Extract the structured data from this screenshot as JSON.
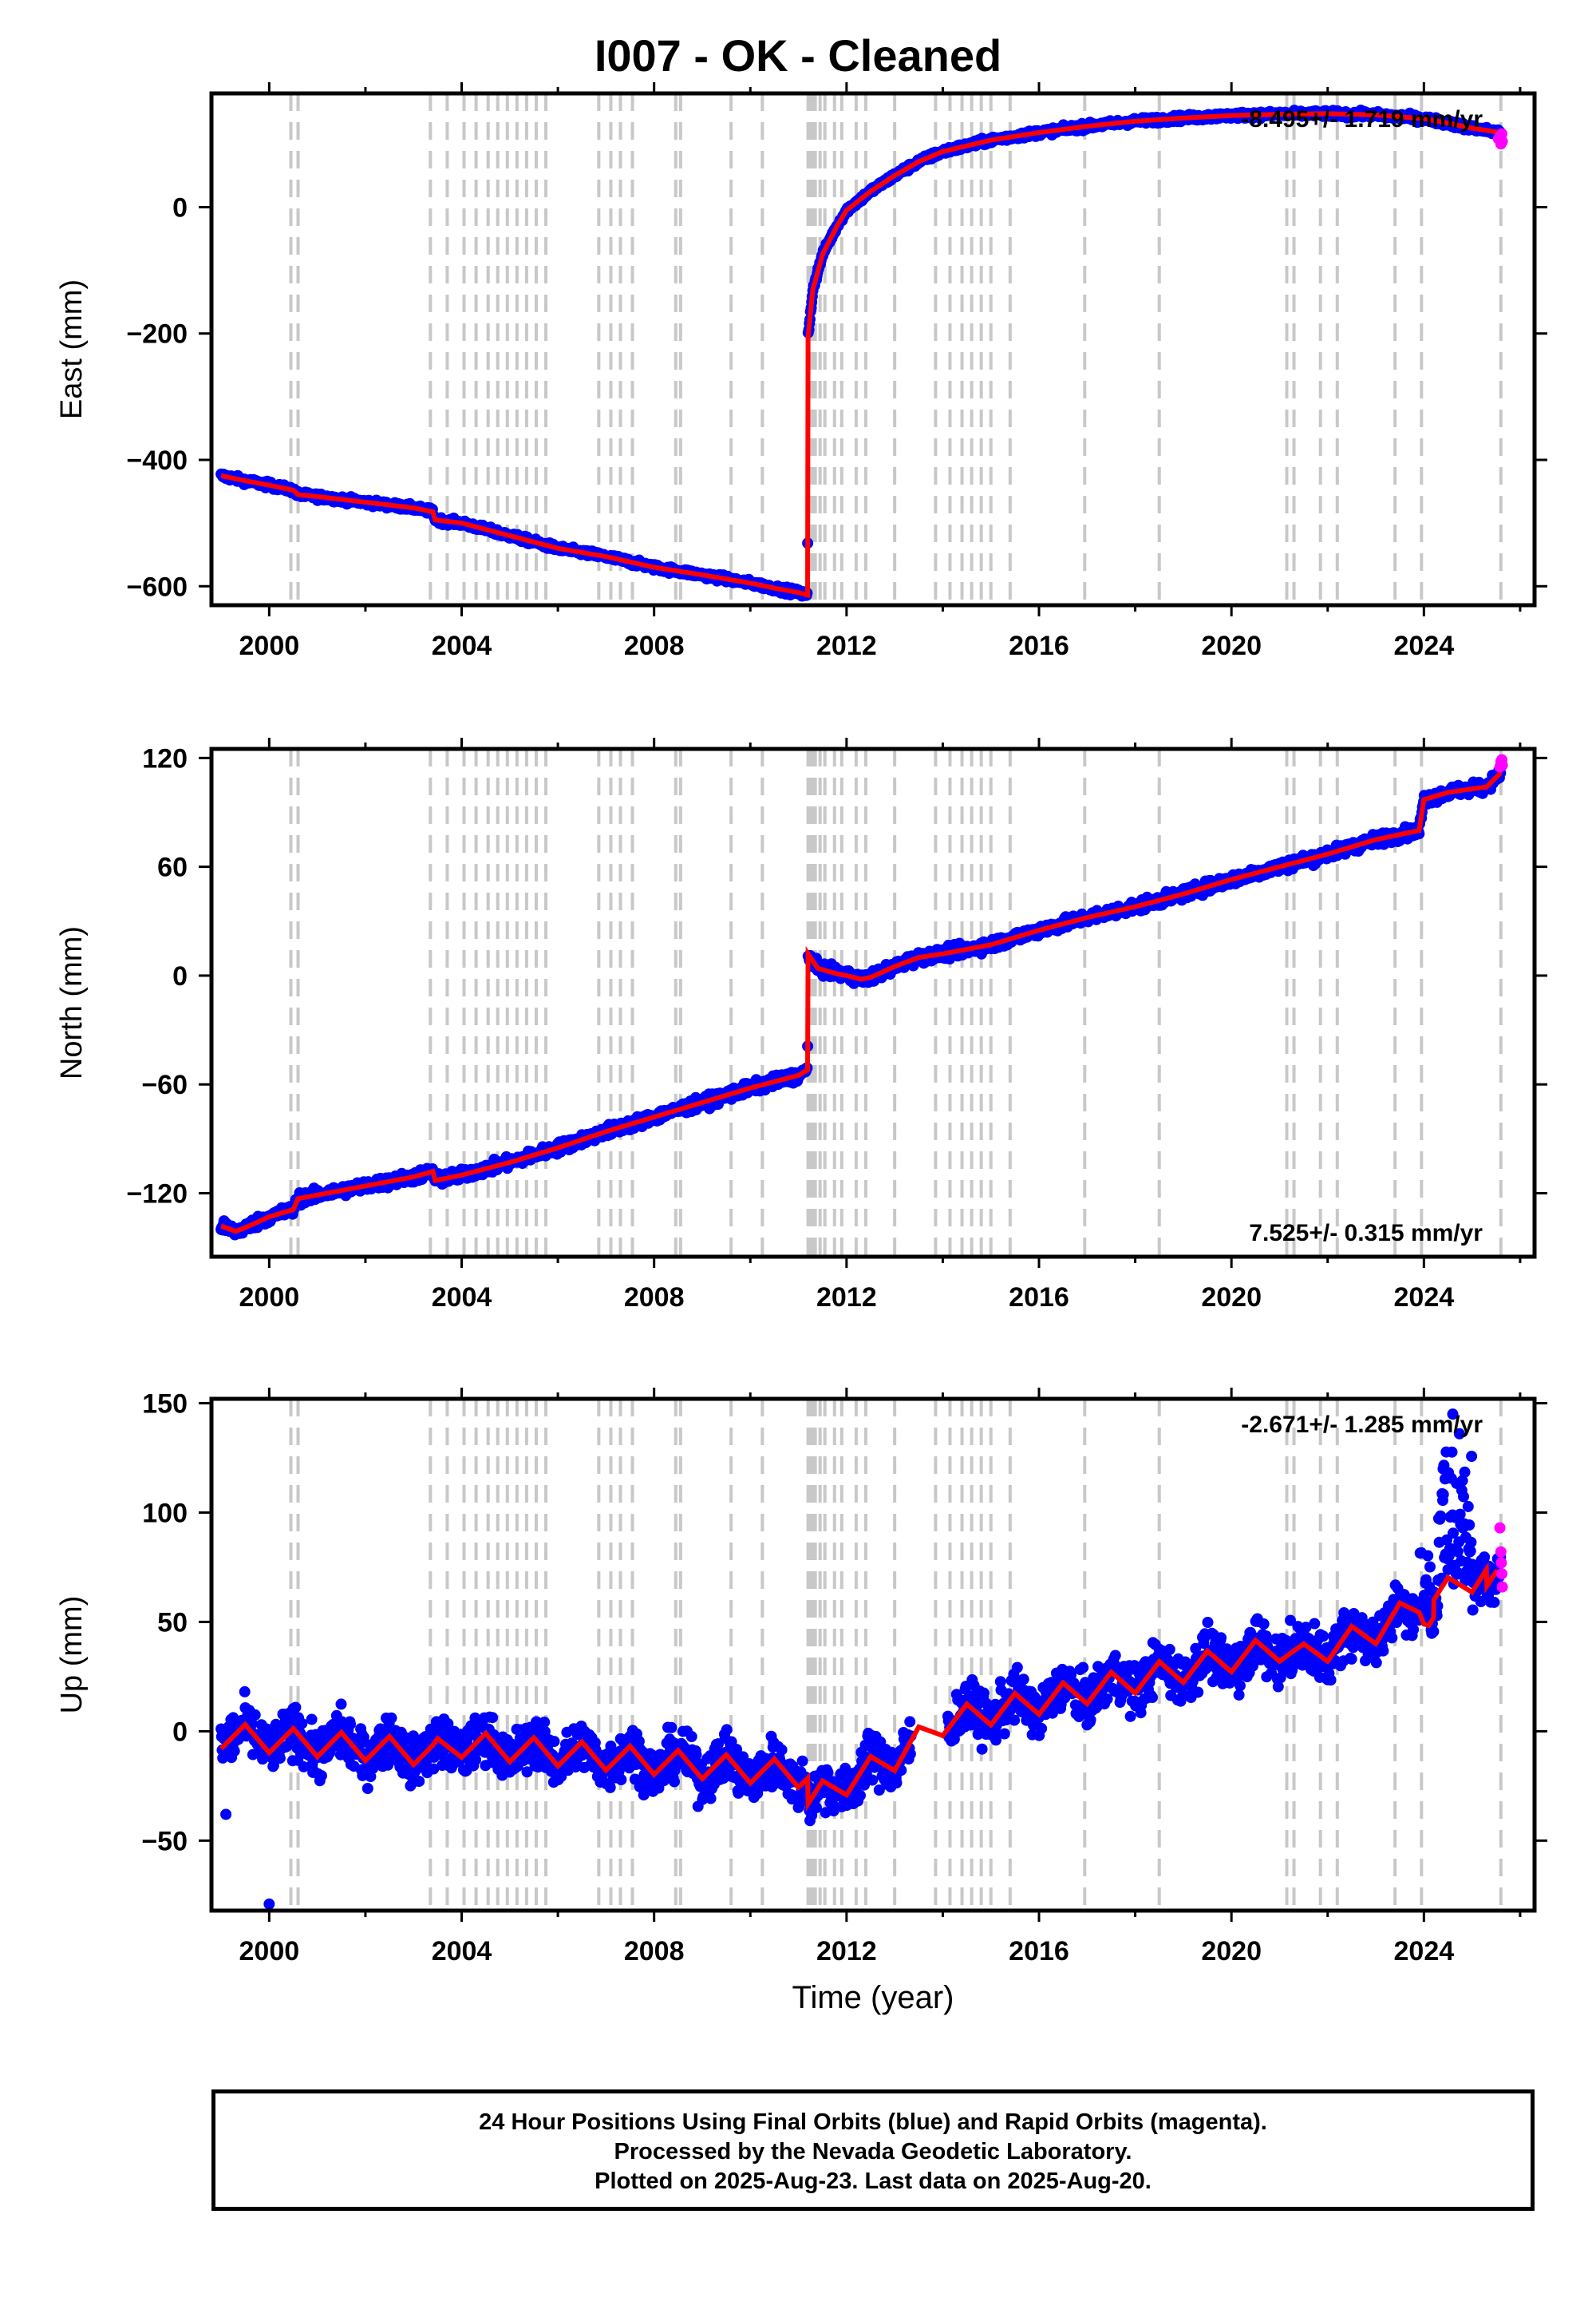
{
  "title": "I007  - OK - Cleaned",
  "xlabel": "Time (year)",
  "footer": {
    "line1": "24 Hour Positions Using Final Orbits (blue) and Rapid Orbits (magenta).",
    "line2": "Processed by the Nevada Geodetic Laboratory.",
    "line3": "Plotted on 2025-Aug-23. Last data on 2025-Aug-20."
  },
  "colors": {
    "final": "#0000ff",
    "rapid": "#ff00ff",
    "model": "#ff0000",
    "event_lines": "#c8c8c8"
  },
  "chart_data": [
    {
      "type": "scatter",
      "panel": "East",
      "ylabel": "East (mm)",
      "rate_label": "-8.495+/- 1.719 mm/yr",
      "rate_position": "top-right",
      "xlim": [
        1998.8,
        2026.3
      ],
      "ylim": [
        -630,
        180
      ],
      "x_ticks": [
        2000,
        2004,
        2008,
        2012,
        2016,
        2020,
        2024
      ],
      "y_ticks": [
        0,
        -200,
        -400,
        -600
      ],
      "y_tick_labels": [
        "0",
        "−200",
        "−400",
        "−600"
      ],
      "model": [
        [
          1999.0,
          -425
        ],
        [
          1999.5,
          -433
        ],
        [
          2000.0,
          -440
        ],
        [
          2000.5,
          -448
        ],
        [
          2000.6,
          -455
        ],
        [
          2001.0,
          -458
        ],
        [
          2002.0,
          -467
        ],
        [
          2003.0,
          -476
        ],
        [
          2003.4,
          -482
        ],
        [
          2003.45,
          -495
        ],
        [
          2004.0,
          -500
        ],
        [
          2005.0,
          -520
        ],
        [
          2006.0,
          -540
        ],
        [
          2007.0,
          -553
        ],
        [
          2008.0,
          -570
        ],
        [
          2009.0,
          -582
        ],
        [
          2010.0,
          -595
        ],
        [
          2010.5,
          -603
        ],
        [
          2011.0,
          -610
        ],
        [
          2011.19,
          -614
        ],
        [
          2011.2,
          -205
        ],
        [
          2011.3,
          -130
        ],
        [
          2011.5,
          -75
        ],
        [
          2011.8,
          -30
        ],
        [
          2012.0,
          -5
        ],
        [
          2012.5,
          25
        ],
        [
          2013.0,
          50
        ],
        [
          2013.5,
          72
        ],
        [
          2014.0,
          88
        ],
        [
          2014.5,
          97
        ],
        [
          2015.0,
          106
        ],
        [
          2016.0,
          118
        ],
        [
          2017.0,
          128
        ],
        [
          2018.0,
          136
        ],
        [
          2019.0,
          141
        ],
        [
          2020.0,
          145
        ],
        [
          2021.0,
          147
        ],
        [
          2022.0,
          148
        ],
        [
          2023.0,
          146
        ],
        [
          2024.0,
          140
        ],
        [
          2024.5,
          133
        ],
        [
          2025.0,
          125
        ],
        [
          2025.6,
          118
        ]
      ],
      "rapid": [
        [
          2025.55,
          108
        ],
        [
          2025.58,
          112
        ],
        [
          2025.6,
          100
        ],
        [
          2025.62,
          116
        ],
        [
          2025.63,
          104
        ]
      ]
    },
    {
      "type": "scatter",
      "panel": "North",
      "ylabel": "North (mm)",
      "rate_label": "7.525+/- 0.315 mm/yr",
      "rate_position": "bottom-right",
      "xlim": [
        1998.8,
        2026.3
      ],
      "ylim": [
        -155,
        125
      ],
      "x_ticks": [
        2000,
        2004,
        2008,
        2012,
        2016,
        2020,
        2024
      ],
      "y_ticks": [
        120,
        60,
        0,
        -60,
        -120
      ],
      "y_tick_labels": [
        "120",
        "60",
        "0",
        "−60",
        "−120"
      ],
      "model": [
        [
          1999.0,
          -138
        ],
        [
          1999.3,
          -141
        ],
        [
          1999.5,
          -139
        ],
        [
          2000.0,
          -133
        ],
        [
          2000.5,
          -129
        ],
        [
          2000.6,
          -123
        ],
        [
          2001.0,
          -121
        ],
        [
          2002.0,
          -116
        ],
        [
          2003.0,
          -111
        ],
        [
          2003.4,
          -108
        ],
        [
          2003.45,
          -113
        ],
        [
          2004.0,
          -110
        ],
        [
          2005.0,
          -103
        ],
        [
          2006.0,
          -95
        ],
        [
          2007.0,
          -86
        ],
        [
          2008.0,
          -78
        ],
        [
          2009.0,
          -70
        ],
        [
          2010.0,
          -62
        ],
        [
          2011.0,
          -55
        ],
        [
          2011.19,
          -52
        ],
        [
          2011.2,
          12
        ],
        [
          2011.4,
          4
        ],
        [
          2011.8,
          1
        ],
        [
          2012.0,
          0
        ],
        [
          2012.3,
          -2
        ],
        [
          2012.5,
          -1
        ],
        [
          2013.0,
          5
        ],
        [
          2013.5,
          10
        ],
        [
          2014.0,
          12
        ],
        [
          2015.0,
          17
        ],
        [
          2016.0,
          25
        ],
        [
          2017.0,
          32
        ],
        [
          2018.0,
          38
        ],
        [
          2019.0,
          45
        ],
        [
          2020.0,
          53
        ],
        [
          2021.0,
          60
        ],
        [
          2022.0,
          67
        ],
        [
          2023.0,
          75
        ],
        [
          2023.9,
          80
        ],
        [
          2024.0,
          97
        ],
        [
          2024.5,
          101
        ],
        [
          2025.0,
          103
        ],
        [
          2025.3,
          104
        ],
        [
          2025.6,
          112
        ]
      ],
      "rapid": [
        [
          2025.58,
          115
        ],
        [
          2025.6,
          118
        ],
        [
          2025.62,
          119
        ],
        [
          2025.63,
          116
        ]
      ]
    },
    {
      "type": "scatter",
      "panel": "Up",
      "ylabel": "Up (mm)",
      "rate_label": "-2.671+/- 1.285 mm/yr",
      "rate_position": "top-right",
      "xlim": [
        1998.8,
        2026.3
      ],
      "ylim": [
        -82,
        152
      ],
      "x_ticks": [
        2000,
        2004,
        2008,
        2012,
        2016,
        2020,
        2024
      ],
      "y_ticks": [
        150,
        100,
        50,
        0,
        -50
      ],
      "y_tick_labels": [
        "150",
        "100",
        "50",
        "0",
        "−50"
      ],
      "model_trend": [
        [
          1999.0,
          -2
        ],
        [
          2003.4,
          -10
        ],
        [
          2004.0,
          -6
        ],
        [
          2011.19,
          -20
        ],
        [
          2011.2,
          -32
        ],
        [
          2013.0,
          -12
        ],
        [
          2014.0,
          4
        ],
        [
          2021.0,
          38
        ],
        [
          2021.5,
          34
        ],
        [
          2023.0,
          46
        ],
        [
          2023.9,
          58
        ],
        [
          2024.1,
          52
        ],
        [
          2025.6,
          68
        ]
      ],
      "annual_amplitude_mm": 6,
      "outliers": [
        [
          2000.0,
          -79
        ],
        [
          1999.1,
          -38
        ],
        [
          2024.6,
          145
        ],
        [
          2024.4,
          120
        ]
      ],
      "rapid": [
        [
          2025.58,
          93
        ],
        [
          2025.6,
          82
        ],
        [
          2025.61,
          77
        ],
        [
          2025.62,
          72
        ],
        [
          2025.63,
          66
        ]
      ]
    }
  ],
  "events": [
    2000.45,
    2000.6,
    2003.35,
    2003.7,
    2004.05,
    2004.3,
    2004.55,
    2004.75,
    2004.95,
    2005.15,
    2005.35,
    2005.55,
    2005.75,
    2006.85,
    2007.1,
    2007.3,
    2007.55,
    2008.45,
    2008.55,
    2009.6,
    2010.25,
    2011.2,
    2011.25,
    2011.3,
    2011.35,
    2011.45,
    2011.55,
    2011.75,
    2011.9,
    2012.2,
    2012.4,
    2013.0,
    2013.85,
    2014.15,
    2014.4,
    2014.6,
    2014.8,
    2015.0,
    2015.4,
    2016.95,
    2018.5,
    2021.15,
    2021.3,
    2021.85,
    2022.2,
    2023.4,
    2023.95,
    2025.6
  ]
}
